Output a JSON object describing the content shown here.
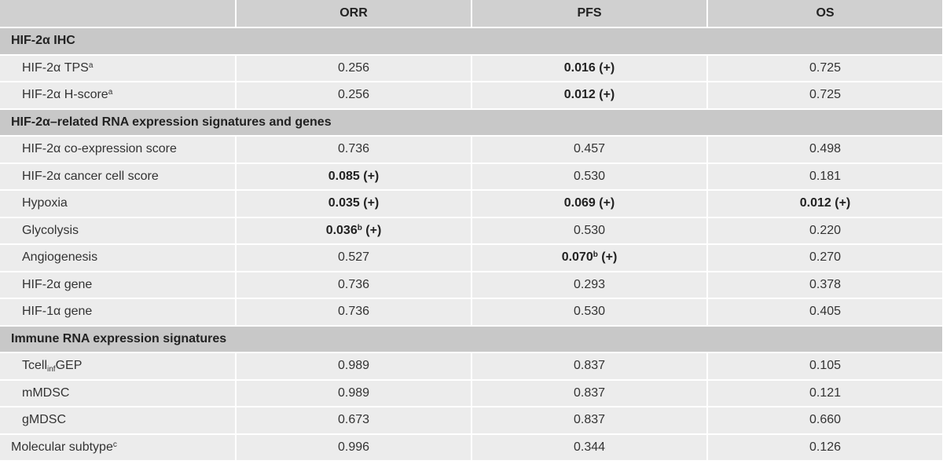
{
  "header": [
    "",
    "ORR",
    "PFS",
    "OS"
  ],
  "sections": [
    {
      "title": "HIF-2α IHC",
      "rows": [
        {
          "label": "HIF-2α TPS",
          "label_sup": "a",
          "orr": {
            "v": "0.256"
          },
          "pfs": {
            "v": "0.016",
            "sig": "(+)",
            "bold": true
          },
          "os": {
            "v": "0.725"
          }
        },
        {
          "label": "HIF-2α H-score",
          "label_sup": "a",
          "orr": {
            "v": "0.256"
          },
          "pfs": {
            "v": "0.012",
            "sig": "(+)",
            "bold": true
          },
          "os": {
            "v": "0.725"
          }
        }
      ]
    },
    {
      "title": "HIF-2α–related RNA expression signatures and genes",
      "rows": [
        {
          "label": "HIF-2α co-expression score",
          "orr": {
            "v": "0.736"
          },
          "pfs": {
            "v": "0.457"
          },
          "os": {
            "v": "0.498"
          }
        },
        {
          "label": "HIF-2α cancer cell score",
          "orr": {
            "v": "0.085",
            "sig": "(+)",
            "bold": true
          },
          "pfs": {
            "v": "0.530"
          },
          "os": {
            "v": "0.181"
          }
        },
        {
          "label": "Hypoxia",
          "orr": {
            "v": "0.035",
            "sig": "(+)",
            "bold": true
          },
          "pfs": {
            "v": "0.069",
            "sig": "(+)",
            "bold": true
          },
          "os": {
            "v": "0.012",
            "sig": "(+)",
            "bold": true
          }
        },
        {
          "label": "Glycolysis",
          "orr": {
            "v": "0.036",
            "sup": "b",
            "sig": "(+)",
            "bold": true
          },
          "pfs": {
            "v": "0.530"
          },
          "os": {
            "v": "0.220"
          }
        },
        {
          "label": "Angiogenesis",
          "orr": {
            "v": "0.527"
          },
          "pfs": {
            "v": "0.070",
            "sup": "b",
            "sig": "(+)",
            "bold": true
          },
          "os": {
            "v": "0.270"
          }
        },
        {
          "label": "HIF-2α gene",
          "orr": {
            "v": "0.736"
          },
          "pfs": {
            "v": "0.293"
          },
          "os": {
            "v": "0.378"
          }
        },
        {
          "label": "HIF-1α gene",
          "orr": {
            "v": "0.736"
          },
          "pfs": {
            "v": "0.530"
          },
          "os": {
            "v": "0.405"
          }
        }
      ]
    },
    {
      "title": "Immune RNA expression signatures",
      "rows": [
        {
          "label": "Tcell",
          "label_sub": "inf",
          "label_after": "GEP",
          "orr": {
            "v": "0.989"
          },
          "pfs": {
            "v": "0.837"
          },
          "os": {
            "v": "0.105"
          }
        },
        {
          "label": "mMDSC",
          "orr": {
            "v": "0.989"
          },
          "pfs": {
            "v": "0.837"
          },
          "os": {
            "v": "0.121"
          }
        },
        {
          "label": "gMDSC",
          "orr": {
            "v": "0.673"
          },
          "pfs": {
            "v": "0.837"
          },
          "os": {
            "v": "0.660"
          }
        }
      ]
    }
  ],
  "footer_rows": [
    {
      "label": "Molecular subtype",
      "label_sup": "c",
      "orr": {
        "v": "0.996"
      },
      "pfs": {
        "v": "0.344"
      },
      "os": {
        "v": "0.126"
      }
    }
  ]
}
